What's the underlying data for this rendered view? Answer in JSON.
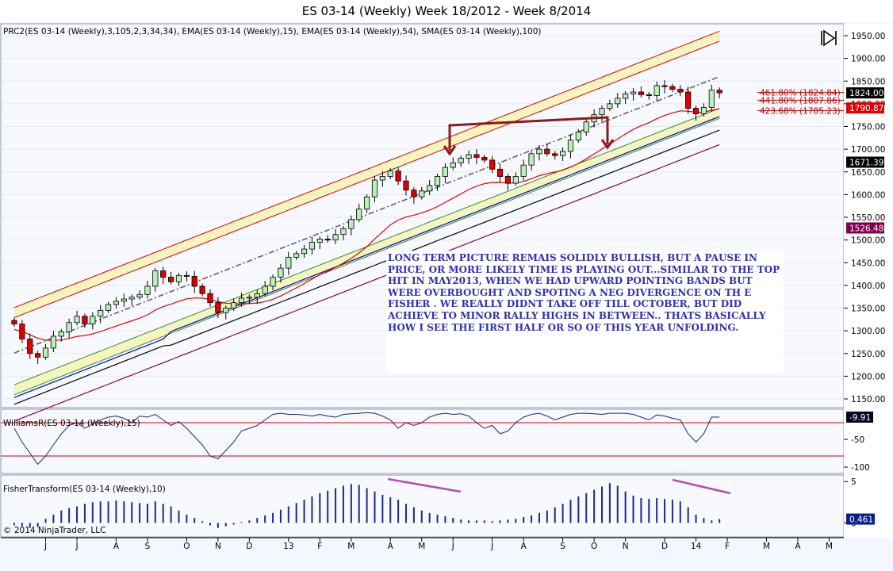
{
  "window": {
    "title": "ES 03-14 (Weekly)  Week 18/2012 - Week 8/2014"
  },
  "panels": {
    "price": {
      "label": "PRC2(ES 03-14 (Weekly),3,105,2,3,34,34), EMA(ES 03-14 (Weekly),15), EMA(ES 03-14 (Weekly),54), SMA(ES 03-14 (Weekly),100)"
    },
    "williams": {
      "label": "WilliamsR(ES 03-14 (Weekly),15)"
    },
    "fisher": {
      "label": "FisherTransform(ES 03-14 (Weekly),10)"
    }
  },
  "copyright": "© 2014 NinjaTrader, LLC",
  "annotation": {
    "text": "LONG TERM PICTURE REMAIS SOLIDLY BULLISH, BUT A PAUSE IN PRICE, OR MORE LIKELY TIME IS PLAYING OUT...SIMILAR TO THE TOP HIT IN MAY2013, WHEN WE HAD UPWARD POINTING BANDS BUT WERE OVERBOUGHT AND SPOTING A NEG DIVERGENCE ON TH E FISHER . WE REALLY DIDNT TAKE OFF TILL OCTOBER, BUT DID ACHIEVE TO MINOR RALLY HIGHS IN BETWEEN.. THATS BASICALLY HOW I SEE THE FIRST HALF OR SO OF THIS YEAR UNFOLDING."
  },
  "price_labels": [
    {
      "text": "1824.00",
      "value": 1824.0,
      "bg": "#000000",
      "fg": "#ffffff"
    },
    {
      "text": "1790.87",
      "value": 1790.87,
      "bg": "#dd0000",
      "fg": "#ffffff"
    },
    {
      "text": "1671.39",
      "value": 1671.39,
      "bg": "#000000",
      "fg": "#ffffff"
    },
    {
      "text": "1526.48",
      "value": 1526.48,
      "bg": "#800050",
      "fg": "#ffffff"
    }
  ],
  "fib_labels": [
    {
      "text": "461.80% (1824.84)",
      "value": 1824.84
    },
    {
      "text": "441.80% (1807.86)",
      "value": 1807.86
    },
    {
      "text": "423.68% (1785.23)",
      "value": 1785.23
    }
  ],
  "indicator_labels": {
    "williams": {
      "text": "-9.91",
      "value": -9.91
    },
    "fisher": {
      "text": "0.461",
      "value": 0.461
    }
  },
  "chart_data": {
    "type": "candlestick",
    "price_axis": {
      "min": 1150,
      "max": 1950,
      "ticks": [
        "1150.00",
        "1200.00",
        "1250.00",
        "1300.00",
        "1350.00",
        "1400.00",
        "1450.00",
        "1500.00",
        "1550.00",
        "1600.00",
        "1650.00",
        "1700.00",
        "1750.00",
        "1800.00",
        "1850.00",
        "1900.00",
        "1950.00"
      ],
      "tick_values": [
        1150,
        1200,
        1250,
        1300,
        1350,
        1400,
        1450,
        1500,
        1550,
        1600,
        1650,
        1700,
        1750,
        1800,
        1850,
        1900,
        1950
      ]
    },
    "williams_axis": {
      "ticks": [
        "-50",
        "-100"
      ],
      "tick_values": [
        -50,
        -100
      ],
      "min": -110,
      "max": 0
    },
    "fisher_axis": {
      "ticks": [
        "5",
        "0"
      ],
      "tick_values": [
        5,
        0
      ],
      "min": -1.5,
      "max": 5.5
    },
    "x_labels": [
      "J",
      "J",
      "A",
      "S",
      "O",
      "N",
      "D",
      "13",
      "F",
      "M",
      "A",
      "M",
      "J",
      "J",
      "A",
      "S",
      "O",
      "N",
      "D",
      "14",
      "F",
      "M",
      "A",
      "M"
    ],
    "x_label_bars": [
      4,
      8,
      13,
      17,
      22,
      26,
      30,
      35,
      39,
      43,
      48,
      52,
      56,
      61,
      65,
      70,
      74,
      78,
      83,
      87,
      91,
      96,
      100,
      104
    ],
    "close": [
      1315,
      1282,
      1250,
      1242,
      1262,
      1288,
      1298,
      1318,
      1332,
      1315,
      1332,
      1345,
      1358,
      1365,
      1370,
      1374,
      1380,
      1398,
      1432,
      1418,
      1408,
      1422,
      1420,
      1398,
      1382,
      1362,
      1340,
      1350,
      1362,
      1372,
      1374,
      1382,
      1398,
      1418,
      1438,
      1462,
      1470,
      1480,
      1495,
      1502,
      1500,
      1512,
      1525,
      1545,
      1568,
      1595,
      1632,
      1640,
      1652,
      1630,
      1610,
      1595,
      1608,
      1620,
      1640,
      1660,
      1670,
      1680,
      1688,
      1682,
      1676,
      1656,
      1640,
      1625,
      1640,
      1665,
      1690,
      1700,
      1690,
      1686,
      1695,
      1720,
      1738,
      1760,
      1776,
      1790,
      1800,
      1812,
      1822,
      1826,
      1820,
      1818,
      1840,
      1838,
      1832,
      1826,
      1790,
      1778,
      1792,
      1830,
      1824
    ],
    "series": [
      {
        "name": "EMA 15",
        "color": "#e00000"
      },
      {
        "name": "EMA 54",
        "color": "#0000c0"
      },
      {
        "name": "SMA 100",
        "color": "#000000"
      },
      {
        "name": "PRC2 midline",
        "color": "#606060"
      }
    ],
    "williams_r": [
      -30,
      -55,
      -75,
      -95,
      -80,
      -60,
      -40,
      -25,
      -20,
      -30,
      -22,
      -15,
      -10,
      -8,
      -12,
      -20,
      -8,
      -10,
      -5,
      -15,
      -25,
      -18,
      -30,
      -45,
      -60,
      -80,
      -85,
      -70,
      -55,
      -35,
      -30,
      -25,
      -15,
      -5,
      -3,
      -5,
      -5,
      -6,
      -8,
      -5,
      -8,
      -10,
      -5,
      -4,
      -3,
      -2,
      -3,
      -8,
      -15,
      -30,
      -20,
      -25,
      -20,
      -10,
      -5,
      -3,
      -5,
      -4,
      -8,
      -20,
      -30,
      -25,
      -40,
      -35,
      -20,
      -10,
      -5,
      -3,
      -8,
      -15,
      -10,
      -5,
      -3,
      -3,
      -4,
      -5,
      -3,
      -3,
      -3,
      -5,
      -10,
      -15,
      -6,
      -8,
      -12,
      -15,
      -40,
      -55,
      -40,
      -10,
      -9.91
    ],
    "fisher": [
      -0.3,
      -0.4,
      -0.6,
      -0.5,
      0.5,
      1.0,
      1.5,
      1.8,
      2.0,
      2.3,
      2.5,
      2.6,
      2.6,
      2.7,
      2.6,
      2.5,
      2.4,
      2.3,
      2.6,
      2.3,
      2.0,
      1.5,
      1.0,
      0.6,
      0.2,
      -0.3,
      -0.6,
      -0.4,
      -0.2,
      0.1,
      0.3,
      0.6,
      0.9,
      1.2,
      1.6,
      2.0,
      2.4,
      2.8,
      3.2,
      3.6,
      3.9,
      4.2,
      4.5,
      4.7,
      4.6,
      4.2,
      3.8,
      3.4,
      3.1,
      2.8,
      2.3,
      1.9,
      1.5,
      1.2,
      1.0,
      0.8,
      0.6,
      0.4,
      0.3,
      0.3,
      0.3,
      0.2,
      0.3,
      0.4,
      0.5,
      0.7,
      0.9,
      1.2,
      1.5,
      1.9,
      2.3,
      2.8,
      3.2,
      3.6,
      4.0,
      4.4,
      4.8,
      4.5,
      3.8,
      3.3,
      3.0,
      2.9,
      3.0,
      2.9,
      2.8,
      2.6,
      1.9,
      1.0,
      0.6,
      0.3,
      0.461
    ]
  }
}
